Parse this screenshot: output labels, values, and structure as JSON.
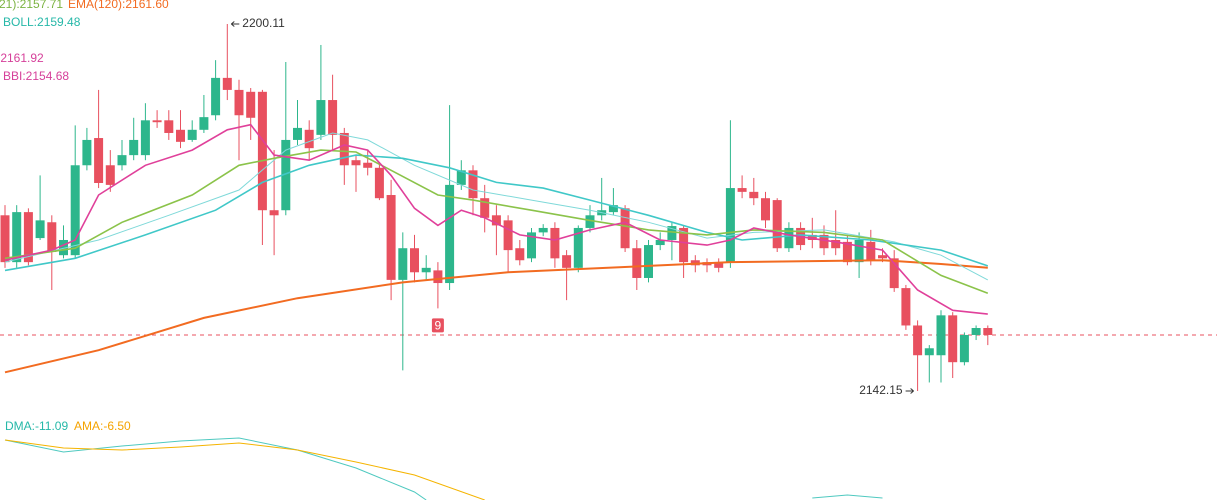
{
  "chart_data": [
    {
      "type": "candlestick",
      "up_color": "#2db68c",
      "down_color": "#e8505f",
      "ylim": [
        2139.15,
        2203.9
      ],
      "open": [
        2169.9,
        2162.5,
        2170.4,
        2166.3,
        2168.8,
        2163.6,
        2163.6,
        2177.8,
        2182.1,
        2177.8,
        2177.8,
        2179.4,
        2179.4,
        2184.9,
        2184.9,
        2183.4,
        2181.8,
        2183.4,
        2185.7,
        2191.6,
        2189.7,
        2189.4,
        2189.4,
        2170.7,
        2170.7,
        2181.8,
        2183.4,
        2182.6,
        2188.1,
        2182.9,
        2178.6,
        2178.2,
        2177.4,
        2173.1,
        2159.7,
        2164.7,
        2160.9,
        2161.2,
        2159.2,
        2174.7,
        2177.0,
        2172.6,
        2169.9,
        2169.1,
        2164.7,
        2163.1,
        2167.2,
        2167.9,
        2163.6,
        2161.6,
        2167.9,
        2169.9,
        2170.4,
        2171.0,
        2164.7,
        2160.0,
        2165.2,
        2166.0,
        2167.9,
        2162.8,
        2162.5,
        2162.5,
        2162.5,
        2174.2,
        2173.6,
        2172.6,
        2172.3,
        2164.7,
        2167.9,
        2166.8,
        2166.8,
        2166.0,
        2165.7,
        2162.5,
        2165.7,
        2163.6,
        2163.1,
        2158.4,
        2152.5,
        2147.8,
        2147.8,
        2154.1,
        2146.7,
        2151.0,
        2152.1
      ],
      "high": [
        2171.5,
        2171.5,
        2171.0,
        2176.2,
        2169.9,
        2168.3,
        2184.1,
        2183.7,
        2189.7,
        2180.2,
        2181.8,
        2185.3,
        2187.6,
        2186.5,
        2186.5,
        2186.5,
        2184.9,
        2188.9,
        2194.4,
        2200.11,
        2191.3,
        2190.0,
        2189.7,
        2180.2,
        2194.1,
        2188.1,
        2184.9,
        2196.8,
        2192.1,
        2183.7,
        2179.4,
        2180.2,
        2178.3,
        2175.5,
        2167.2,
        2166.8,
        2163.6,
        2162.5,
        2187.3,
        2178.6,
        2177.8,
        2174.7,
        2171.5,
        2169.9,
        2166.0,
        2167.9,
        2168.5,
        2168.8,
        2164.4,
        2168.3,
        2171.5,
        2175.8,
        2174.2,
        2171.5,
        2166.0,
        2166.0,
        2167.2,
        2168.8,
        2168.3,
        2163.6,
        2163.1,
        2163.1,
        2184.9,
        2176.2,
        2175.8,
        2173.6,
        2172.6,
        2168.8,
        2168.8,
        2169.5,
        2168.3,
        2170.7,
        2166.8,
        2167.2,
        2167.6,
        2164.7,
        2164.4,
        2158.9,
        2153.3,
        2149.4,
        2154.9,
        2154.6,
        2151.4,
        2152.5,
        2152.5
      ],
      "low": [
        2161.6,
        2161.6,
        2162.0,
        2166.0,
        2158.1,
        2163.1,
        2163.1,
        2177.0,
        2174.2,
        2173.6,
        2177.0,
        2178.6,
        2178.6,
        2183.7,
        2181.8,
        2180.5,
        2181.5,
        2182.9,
        2184.9,
        2188.1,
        2178.6,
        2181.8,
        2165.2,
        2163.6,
        2169.9,
        2181.0,
        2178.6,
        2181.8,
        2180.2,
        2174.7,
        2173.6,
        2176.2,
        2172.3,
        2156.5,
        2145.4,
        2159.3,
        2159.7,
        2155.2,
        2158.1,
        2173.9,
        2169.9,
        2167.2,
        2163.6,
        2160.9,
        2162.0,
        2162.5,
        2166.6,
        2161.6,
        2156.5,
        2160.9,
        2167.2,
        2169.1,
        2169.9,
        2164.1,
        2158.1,
        2159.3,
        2164.4,
        2162.8,
        2160.0,
        2160.9,
        2160.9,
        2160.9,
        2161.6,
        2172.6,
        2171.5,
        2167.9,
        2164.1,
        2164.1,
        2164.4,
        2164.7,
        2163.6,
        2163.6,
        2162.0,
        2160.0,
        2162.0,
        2162.5,
        2157.8,
        2151.8,
        2142.15,
        2143.5,
        2143.5,
        2144.2,
        2146.2,
        2150.2,
        2149.4
      ],
      "close": [
        2162.5,
        2170.4,
        2162.5,
        2169.1,
        2164.1,
        2166.0,
        2177.8,
        2181.8,
        2175.0,
        2174.7,
        2179.4,
        2181.8,
        2184.9,
        2184.6,
        2182.9,
        2181.5,
        2183.4,
        2185.4,
        2191.6,
        2189.7,
        2185.7,
        2185.3,
        2170.7,
        2169.9,
        2181.8,
        2183.7,
        2180.5,
        2188.1,
        2182.6,
        2177.8,
        2177.8,
        2177.4,
        2172.6,
        2159.7,
        2164.7,
        2160.9,
        2161.6,
        2159.2,
        2174.7,
        2177.0,
        2172.6,
        2169.5,
        2168.3,
        2164.4,
        2162.8,
        2167.2,
        2167.9,
        2163.1,
        2161.6,
        2167.9,
        2169.9,
        2170.7,
        2171.5,
        2164.7,
        2160.0,
        2165.2,
        2166.0,
        2168.2,
        2162.5,
        2162.0,
        2162.0,
        2161.6,
        2174.2,
        2173.6,
        2172.6,
        2169.1,
        2164.7,
        2167.9,
        2165.2,
        2166.0,
        2164.7,
        2164.7,
        2162.5,
        2166.0,
        2162.8,
        2163.1,
        2158.4,
        2152.5,
        2147.8,
        2148.9,
        2154.1,
        2146.7,
        2151.0,
        2152.1,
        2151.0
      ],
      "lines": [
        {
          "color": "#f26b21",
          "x": [
            0,
            8,
            17,
            25,
            34,
            43,
            55,
            62,
            75,
            80,
            84
          ],
          "values": [
            2145.1,
            2148.6,
            2153.7,
            2156.8,
            2159.3,
            2160.9,
            2161.9,
            2162.5,
            2162.8,
            2162.2,
            2161.6
          ]
        },
        {
          "color": "#7fd9d9",
          "x": [
            0,
            8,
            14,
            20,
            24,
            28,
            31,
            35,
            40,
            45,
            50,
            55,
            60,
            64,
            70,
            76,
            80,
            84
          ],
          "values": [
            2162.5,
            2166.0,
            2169.9,
            2173.9,
            2180.2,
            2182.9,
            2181.8,
            2177.8,
            2173.9,
            2172.3,
            2170.7,
            2168.8,
            2166.3,
            2167.2,
            2167.6,
            2165.7,
            2163.6,
            2159.7
          ]
        },
        {
          "color": "#40c8c8",
          "x": [
            0,
            6,
            12,
            18,
            22,
            26,
            30,
            34,
            38,
            42,
            46,
            50,
            55,
            60,
            63,
            68,
            74,
            80,
            84
          ],
          "values": [
            2161.2,
            2163.1,
            2166.8,
            2170.7,
            2175.1,
            2177.8,
            2179.4,
            2178.9,
            2177.4,
            2175.1,
            2174.2,
            2172.3,
            2169.9,
            2167.2,
            2166.0,
            2166.8,
            2166.0,
            2164.4,
            2161.9
          ]
        },
        {
          "color": "#8bc34a",
          "x": [
            0,
            6,
            10,
            16,
            20,
            23,
            27,
            30,
            33,
            37,
            40,
            45,
            50,
            55,
            60,
            64,
            70,
            75,
            80,
            84
          ],
          "values": [
            2163.1,
            2164.7,
            2168.8,
            2173.1,
            2177.8,
            2178.9,
            2180.2,
            2179.9,
            2177.0,
            2173.1,
            2172.3,
            2170.7,
            2169.1,
            2167.6,
            2166.8,
            2167.6,
            2167.2,
            2166.0,
            2160.4,
            2157.6
          ]
        },
        {
          "color": "#e0409a",
          "x": [
            0,
            4,
            6,
            8,
            12,
            16,
            19,
            21,
            23,
            26,
            29,
            31,
            33,
            35,
            37,
            39,
            41,
            44,
            47,
            50,
            53,
            56,
            60,
            62,
            64,
            67,
            71,
            75,
            78,
            81,
            84
          ],
          "values": [
            2162.8,
            2164.4,
            2166.0,
            2173.1,
            2177.8,
            2180.2,
            2183.4,
            2184.2,
            2179.4,
            2178.6,
            2181.0,
            2180.2,
            2176.2,
            2171.0,
            2168.3,
            2170.7,
            2169.5,
            2166.8,
            2166.0,
            2167.6,
            2168.8,
            2166.0,
            2165.2,
            2166.0,
            2167.9,
            2166.8,
            2165.7,
            2164.4,
            2158.1,
            2154.9,
            2154.3
          ]
        }
      ],
      "labels": [
        {
          "text": "21):2157.71",
          "color": "#7cb342"
        },
        {
          "text": "EMA(120):2161.60",
          "color": "#f26b21"
        },
        {
          "text": "BOLL:2159.48",
          "color": "#26b8a8"
        },
        {
          "text": ":2161.92",
          "color": "#d6409a"
        },
        {
          "text": "BBI:2154.68",
          "color": "#d6409a"
        }
      ],
      "markers": [
        {
          "x": 37,
          "text": "9"
        }
      ]
    },
    {
      "type": "line",
      "ylim": [
        -15,
        10
      ],
      "series": [
        {
          "color": "#4fc9c0",
          "x": [
            0,
            5,
            10,
            15,
            20,
            25,
            30,
            35,
            36,
            50,
            69,
            72,
            75
          ],
          "values": [
            5,
            2,
            3.5,
            4.75,
            5.5,
            2.5,
            -2,
            -8,
            -10,
            null,
            -9.5,
            -8.75,
            -9.5
          ]
        },
        {
          "color": "#f5b400",
          "x": [
            0,
            5,
            10,
            15,
            20,
            25,
            30,
            35,
            41
          ],
          "values": [
            5,
            3,
            2.5,
            3.25,
            4.25,
            2.5,
            -0.5,
            -3.75,
            -10
          ]
        }
      ],
      "labels": [
        {
          "text": "DMA:-11.09",
          "color": "#26b8a8"
        },
        {
          "text": "AMA:-6.50",
          "color": "#f5a300"
        }
      ]
    }
  ]
}
